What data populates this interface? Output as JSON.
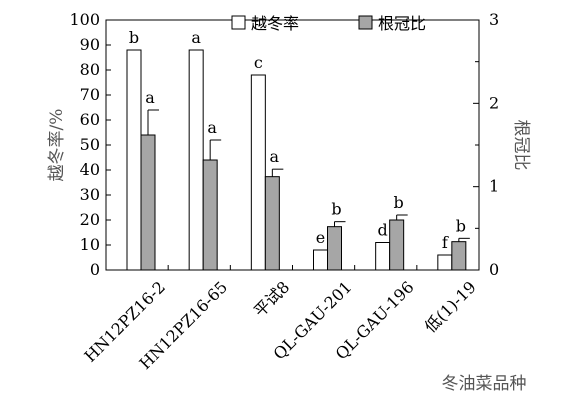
{
  "chart_data": {
    "type": "bar",
    "categories": [
      "HN12PZ16-2",
      "HN12PZ16-65",
      "平试8",
      "QL-GAU-201",
      "QL-GAU-196",
      "低(1)-19"
    ],
    "series": [
      {
        "name": "越冬率",
        "axis": "left",
        "values": [
          88,
          88,
          78,
          8,
          11,
          6
        ],
        "significance": [
          "b",
          "a",
          "c",
          "e",
          "d",
          "f"
        ],
        "fill": "#ffffff"
      },
      {
        "name": "根冠比",
        "axis": "right",
        "values": [
          1.62,
          1.32,
          1.12,
          0.52,
          0.6,
          0.34
        ],
        "errors": [
          0.3,
          0.24,
          0.09,
          0.06,
          0.06,
          0.04
        ],
        "significance": [
          "a",
          "a",
          "a",
          "b",
          "b",
          "b"
        ],
        "fill": "#a6a6a6"
      }
    ],
    "ylabel": "越冬率/%",
    "ylim": [
      0,
      100
    ],
    "yticks": [
      0,
      10,
      20,
      30,
      40,
      50,
      60,
      70,
      80,
      90,
      100
    ],
    "y2label": "根冠比",
    "y2lim": [
      0,
      3
    ],
    "y2ticks": [
      0,
      1,
      2,
      3
    ],
    "y2tick_labels": [
      "0",
      "1",
      "2",
      "3"
    ],
    "y2minor_ticks": [
      0.5,
      1.5,
      2.5
    ],
    "xlabel": "冬油菜品种",
    "legend_position": "top",
    "grid": false
  }
}
